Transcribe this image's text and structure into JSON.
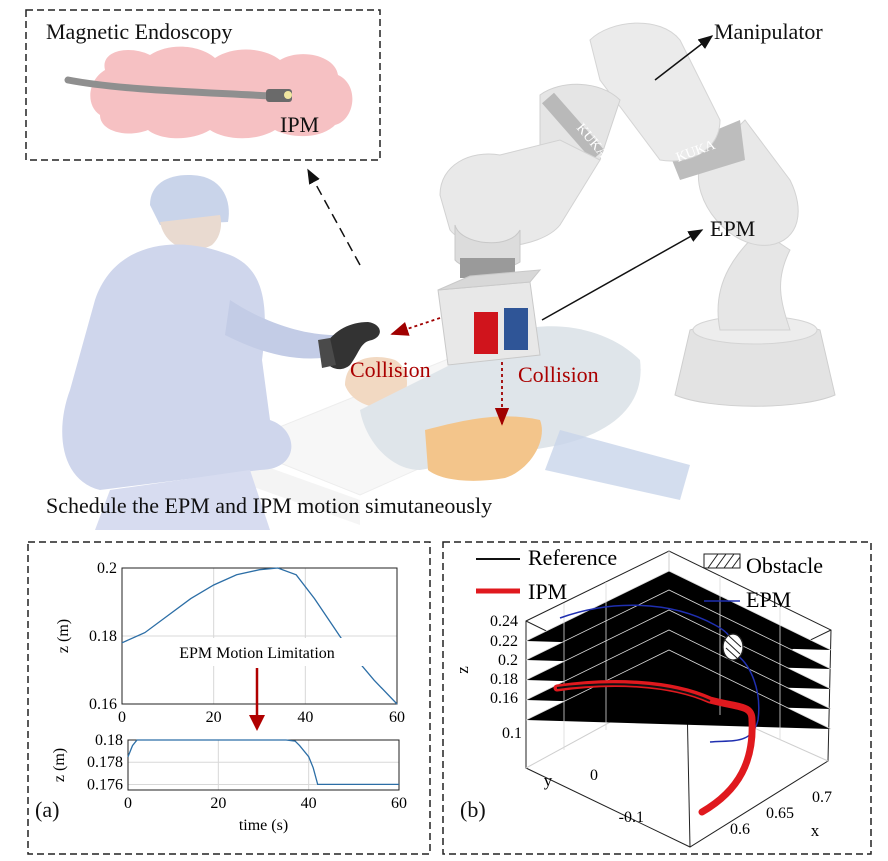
{
  "inset": {
    "title": "Magnetic Endoscopy",
    "ipm_label": "IPM"
  },
  "labels": {
    "manipulator": "Manipulator",
    "epm": "EPM",
    "collision_1": "Collision",
    "collision_2": "Collision",
    "caption": "Schedule the EPM and IPM motion simutaneously",
    "panel_a": "(a)",
    "panel_b": "(b)"
  },
  "robot_text": {
    "link1": "KUKA",
    "link2": "KUKA"
  },
  "colors": {
    "red_magnet": "#d0141c",
    "blue_magnet": "#2f5597",
    "robot": "#e4e4e4",
    "collision": "#a00000",
    "ipm_line": "#e0191e",
    "epm_line": "#1f2fb0",
    "series": "#2c6ea6"
  },
  "chart_data": [
    {
      "type": "line",
      "title": "",
      "xlabel": "",
      "ylabel": "z (m)",
      "xlim": [
        0,
        60
      ],
      "ylim": [
        0.16,
        0.2
      ],
      "xticks": [
        0,
        20,
        40,
        60
      ],
      "yticks": [
        0.16,
        0.18,
        0.2
      ],
      "annotation": "EPM Motion Limitation",
      "grid": true,
      "series": [
        {
          "x": [
            0,
            5,
            10,
            15,
            20,
            25,
            30,
            34,
            38,
            42,
            46,
            50,
            55,
            60
          ],
          "y": [
            0.178,
            0.181,
            0.186,
            0.191,
            0.195,
            0.198,
            0.1995,
            0.2,
            0.198,
            0.191,
            0.183,
            0.175,
            0.167,
            0.16
          ]
        }
      ]
    },
    {
      "type": "line",
      "title": "",
      "xlabel": "time (s)",
      "ylabel": "z (m)",
      "xlim": [
        0,
        60
      ],
      "ylim": [
        0.1755,
        0.18
      ],
      "xticks": [
        0,
        20,
        40,
        60
      ],
      "yticks": [
        0.176,
        0.178,
        0.18
      ],
      "grid": true,
      "series": [
        {
          "x": [
            0,
            1,
            2,
            3,
            20,
            30,
            35,
            37,
            38,
            40,
            41,
            42,
            50,
            60
          ],
          "y": [
            0.1785,
            0.1795,
            0.18,
            0.18,
            0.18,
            0.18,
            0.18,
            0.1799,
            0.1795,
            0.1785,
            0.1775,
            0.176,
            0.176,
            0.176
          ]
        }
      ]
    },
    {
      "type": "line",
      "title": "",
      "xlabel": "x",
      "ylabel": "y",
      "zlabel": "z",
      "legend": [
        "Reference",
        "IPM",
        "Obstacle",
        "EPM"
      ],
      "zticks": [
        0.16,
        0.18,
        0.2,
        0.22,
        0.24
      ],
      "yticks": [
        0.1,
        0,
        -0.1
      ],
      "xticks": [
        0.6,
        0.65,
        0.7
      ],
      "series": [
        {
          "name": "Reference"
        },
        {
          "name": "IPM"
        },
        {
          "name": "Obstacle"
        },
        {
          "name": "EPM"
        }
      ]
    }
  ]
}
